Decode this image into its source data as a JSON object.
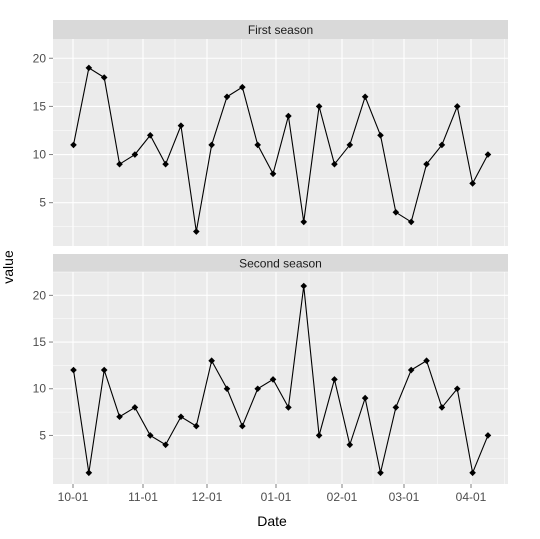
{
  "chart_data": {
    "type": "line",
    "facet_layout": "vertical",
    "xlabel": "Date",
    "ylabel": "value",
    "x_tick_labels": [
      "10-01",
      "11-01",
      "12-01",
      "01-01",
      "02-01",
      "03-01",
      "04-01"
    ],
    "point_marker": "diamond",
    "grid": true,
    "colors": {
      "panel_background": "#ebebeb",
      "strip_background": "#d9d9d9",
      "grid": "#ffffff",
      "line": "#000000",
      "point": "#000000"
    },
    "panels": [
      {
        "strip_label": "First season",
        "ylim": [
          0.5,
          22
        ],
        "yticks": [
          5,
          10,
          15,
          20
        ],
        "values": [
          11,
          19,
          18,
          9,
          10,
          12,
          9,
          13,
          2,
          11,
          16,
          17,
          11,
          8,
          14,
          3,
          15,
          9,
          11,
          16,
          12,
          4,
          3,
          9,
          11,
          15,
          7,
          10
        ]
      },
      {
        "strip_label": "Second season",
        "ylim": [
          -0.2,
          22.5
        ],
        "yticks": [
          5,
          10,
          15,
          20
        ],
        "values": [
          12,
          1,
          12,
          7,
          8,
          5,
          4,
          7,
          6,
          13,
          10,
          6,
          10,
          11,
          8,
          21,
          5,
          11,
          4,
          9,
          1,
          8,
          12,
          13,
          8,
          10,
          1,
          5
        ]
      }
    ]
  }
}
